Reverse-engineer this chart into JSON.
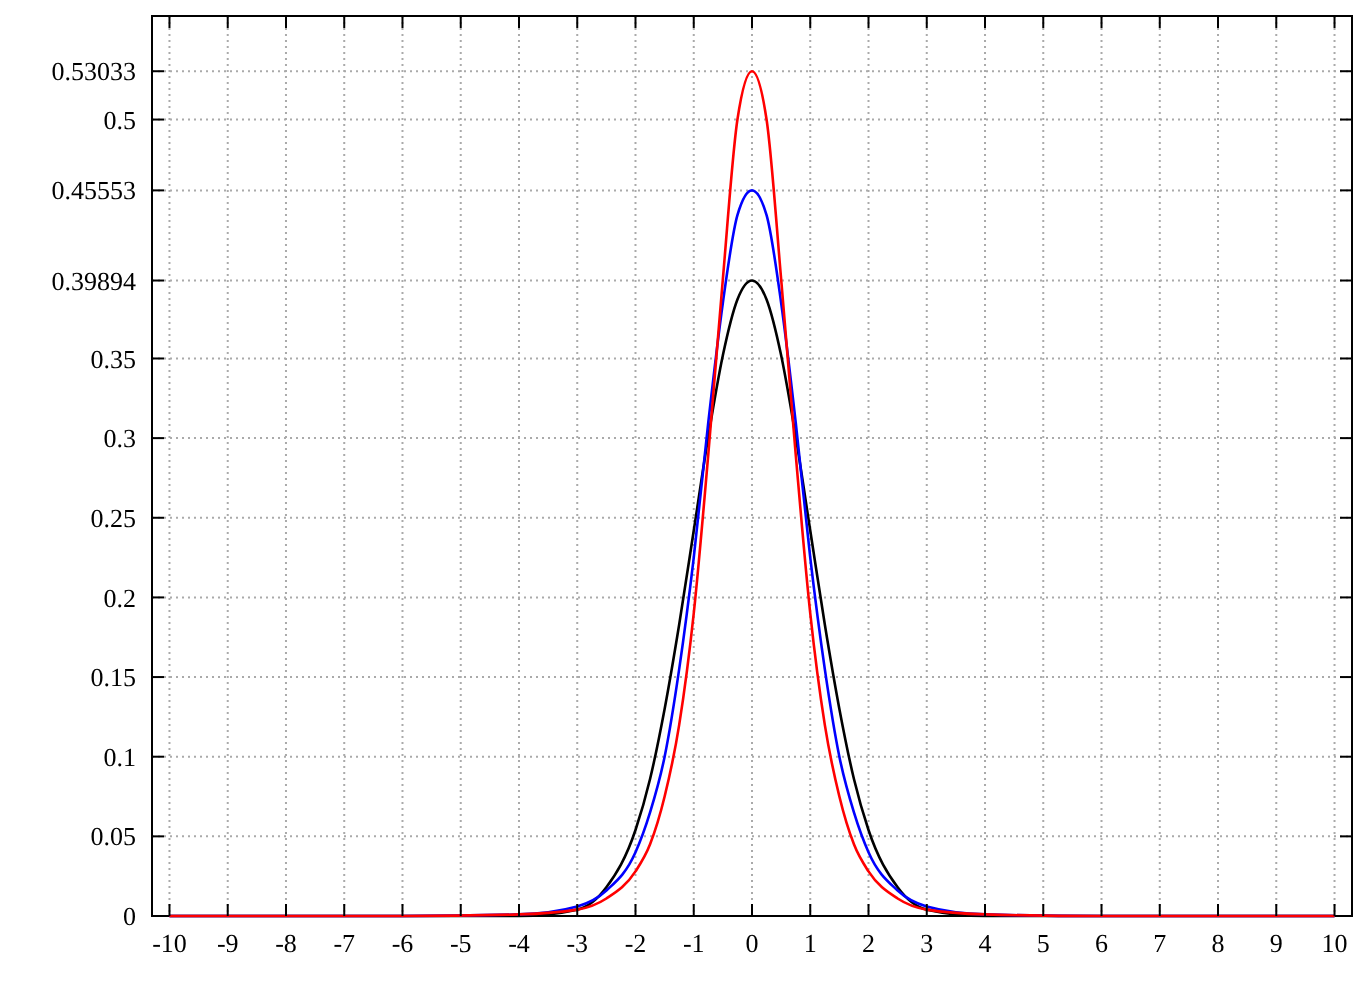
{
  "chart_data": {
    "type": "line",
    "x": [
      -10,
      -6,
      -4,
      -3,
      -2.5,
      -2,
      -1.75,
      -1.5,
      -1.25,
      -1,
      -0.75,
      -0.5,
      -0.25,
      0,
      0.25,
      0.5,
      0.75,
      1,
      1.25,
      1.5,
      1.75,
      2,
      2.5,
      3,
      4,
      6,
      10
    ],
    "series": [
      {
        "color": "#000000",
        "values": [
          0,
          0,
          0,
          0.004,
          0.018,
          0.054,
          0.086,
          0.13,
          0.183,
          0.242,
          0.301,
          0.352,
          0.387,
          0.39894,
          0.387,
          0.352,
          0.301,
          0.242,
          0.183,
          0.13,
          0.086,
          0.054,
          0.018,
          0.004,
          0,
          0,
          0
        ]
      },
      {
        "color": "#0000ff",
        "values": [
          0,
          0,
          0.001,
          0.006,
          0.016,
          0.04,
          0.065,
          0.1,
          0.155,
          0.225,
          0.31,
          0.385,
          0.44,
          0.45553,
          0.44,
          0.385,
          0.31,
          0.225,
          0.155,
          0.1,
          0.065,
          0.04,
          0.016,
          0.006,
          0.001,
          0,
          0
        ]
      },
      {
        "color": "#ff0000",
        "values": [
          0,
          0,
          0.001,
          0.004,
          0.011,
          0.028,
          0.045,
          0.075,
          0.12,
          0.19,
          0.29,
          0.4,
          0.5,
          0.53033,
          0.5,
          0.4,
          0.29,
          0.19,
          0.12,
          0.075,
          0.045,
          0.028,
          0.011,
          0.004,
          0.001,
          0,
          0
        ]
      }
    ],
    "xlim": [
      -10.3,
      10.3
    ],
    "xticks": [
      -10,
      -9,
      -8,
      -7,
      -6,
      -5,
      -4,
      -3,
      -2,
      -1,
      0,
      1,
      2,
      3,
      4,
      5,
      6,
      7,
      8,
      9,
      10
    ],
    "ylim": [
      0,
      0.565
    ],
    "yticks": [
      0,
      0.05,
      0.1,
      0.15,
      0.2,
      0.25,
      0.3,
      0.35,
      0.39894,
      0.45553,
      0.5,
      0.53033
    ],
    "grid": true,
    "line_style": "solid"
  }
}
